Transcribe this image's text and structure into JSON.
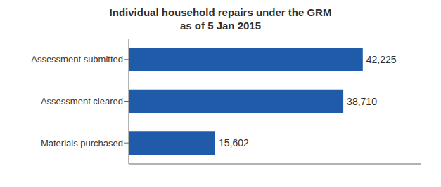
{
  "chart_data": {
    "type": "bar",
    "title": "Individual household repairs under the GRM\nas of 5 Jan 2015",
    "orientation": "horizontal",
    "categories": [
      "Assessment submitted",
      "Assessment cleared",
      "Materials purchased"
    ],
    "values": [
      42225,
      38710,
      15602
    ],
    "value_labels": [
      "42,225",
      "38,710",
      "15,602"
    ],
    "data_labels": true,
    "color": "#1F5BA8",
    "xlim": [
      0,
      52781.25
    ],
    "grid": false,
    "tick_labels": "y"
  }
}
